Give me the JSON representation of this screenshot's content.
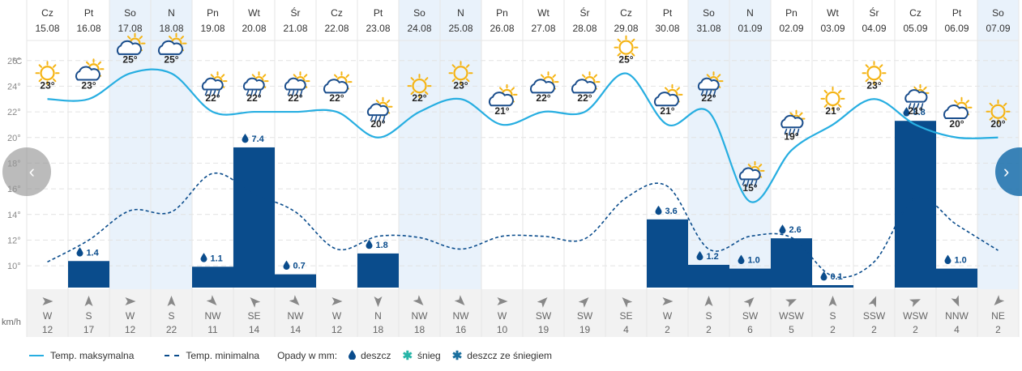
{
  "colors": {
    "max_line": "#27aee1",
    "min_line": "#0a4c8c",
    "bar": "#0a4c8c",
    "weekend_bg": "#e9f2fb",
    "sun": "#f5b414",
    "cloud": "#1b4e8c",
    "grid": "#e2e2e2",
    "wind_bg": "#f2f2f2"
  },
  "navigation": {
    "prev_glyph": "‹",
    "next_glyph": "›"
  },
  "legend": {
    "max_label": "Temp. maksymalna",
    "min_label": "Temp. minimalna",
    "precip_label": "Opady w mm:",
    "rain_label": "deszcz",
    "snow_label": "śnieg",
    "sleet_label": "deszcz ze śniegiem",
    "rain_glyph": "💧",
    "snow_glyph": "✱",
    "sleet_glyph": "✱"
  },
  "chart_data": {
    "type": "line",
    "days": [
      {
        "dow": "Cz",
        "date": "15.08",
        "max": 23,
        "min": 10.3,
        "precip": null,
        "wind_dir": "W",
        "wind_speed": 12,
        "wind_arrow_deg": 90,
        "icon": "sun-icon",
        "weekend": false
      },
      {
        "dow": "Pt",
        "date": "16.08",
        "max": 23,
        "min": 12,
        "precip": 1.4,
        "wind_dir": "S",
        "wind_speed": 17,
        "wind_arrow_deg": 0,
        "icon": "cloud-sun-icon",
        "weekend": false
      },
      {
        "dow": "So",
        "date": "17.08",
        "max": 25,
        "min": 14.3,
        "precip": null,
        "wind_dir": "W",
        "wind_speed": 12,
        "wind_arrow_deg": 90,
        "icon": "cloud-sun-icon",
        "weekend": true
      },
      {
        "dow": "N",
        "date": "18.08",
        "max": 25,
        "min": 14.2,
        "precip": null,
        "wind_dir": "S",
        "wind_speed": 22,
        "wind_arrow_deg": 0,
        "icon": "cloud-sun-icon",
        "weekend": true
      },
      {
        "dow": "Pn",
        "date": "19.08",
        "max": 22,
        "min": 17.2,
        "precip": 1.1,
        "wind_dir": "NW",
        "wind_speed": 11,
        "wind_arrow_deg": 135,
        "icon": "cloud-sun-rain-icon",
        "weekend": false
      },
      {
        "dow": "Wt",
        "date": "20.08",
        "max": 22,
        "min": 15.6,
        "precip": 7.4,
        "wind_dir": "SE",
        "wind_speed": 14,
        "wind_arrow_deg": -45,
        "icon": "cloud-sun-rain-icon",
        "weekend": false
      },
      {
        "dow": "Śr",
        "date": "21.08",
        "max": 22,
        "min": 14.2,
        "precip": 0.7,
        "wind_dir": "NW",
        "wind_speed": 14,
        "wind_arrow_deg": 135,
        "icon": "cloud-sun-rain-icon",
        "weekend": false
      },
      {
        "dow": "Cz",
        "date": "22.08",
        "max": 22,
        "min": 11.3,
        "precip": null,
        "wind_dir": "W",
        "wind_speed": 12,
        "wind_arrow_deg": 90,
        "icon": "cloud-sun-icon",
        "weekend": false
      },
      {
        "dow": "Pt",
        "date": "23.08",
        "max": 20,
        "min": 12.3,
        "precip": 1.8,
        "wind_dir": "N",
        "wind_speed": 18,
        "wind_arrow_deg": 180,
        "icon": "cloud-sun-rain-icon",
        "weekend": false
      },
      {
        "dow": "So",
        "date": "24.08",
        "max": 22,
        "min": 12.2,
        "precip": null,
        "wind_dir": "NW",
        "wind_speed": 18,
        "wind_arrow_deg": 135,
        "icon": "sun-icon",
        "weekend": true
      },
      {
        "dow": "N",
        "date": "25.08",
        "max": 23,
        "min": 11.3,
        "precip": null,
        "wind_dir": "NW",
        "wind_speed": 16,
        "wind_arrow_deg": 135,
        "icon": "sun-icon",
        "weekend": true
      },
      {
        "dow": "Pn",
        "date": "26.08",
        "max": 21,
        "min": 12.3,
        "precip": null,
        "wind_dir": "W",
        "wind_speed": 10,
        "wind_arrow_deg": 90,
        "icon": "cloud-sun-icon",
        "weekend": false
      },
      {
        "dow": "Wt",
        "date": "27.08",
        "max": 22,
        "min": 12.3,
        "precip": null,
        "wind_dir": "SW",
        "wind_speed": 19,
        "wind_arrow_deg": 45,
        "icon": "cloud-sun-icon",
        "weekend": false
      },
      {
        "dow": "Śr",
        "date": "28.08",
        "max": 22,
        "min": 12.1,
        "precip": null,
        "wind_dir": "SW",
        "wind_speed": 19,
        "wind_arrow_deg": 45,
        "icon": "cloud-sun-icon",
        "weekend": false
      },
      {
        "dow": "Cz",
        "date": "29.08",
        "max": 25,
        "min": 15.3,
        "precip": null,
        "wind_dir": "SE",
        "wind_speed": 4,
        "wind_arrow_deg": -45,
        "icon": "sun-icon",
        "weekend": false
      },
      {
        "dow": "Pt",
        "date": "30.08",
        "max": 21,
        "min": 16.2,
        "precip": 3.6,
        "wind_dir": "W",
        "wind_speed": 2,
        "wind_arrow_deg": 90,
        "icon": "cloud-sun-icon",
        "weekend": false
      },
      {
        "dow": "So",
        "date": "31.08",
        "max": 22,
        "min": 11.3,
        "precip": 1.2,
        "wind_dir": "S",
        "wind_speed": 2,
        "wind_arrow_deg": 0,
        "icon": "cloud-sun-rain-icon",
        "weekend": true
      },
      {
        "dow": "N",
        "date": "01.09",
        "max": 15,
        "min": 12.3,
        "precip": 1.0,
        "wind_dir": "SW",
        "wind_speed": 6,
        "wind_arrow_deg": 45,
        "icon": "cloud-sun-rain-icon",
        "weekend": true
      },
      {
        "dow": "Pn",
        "date": "02.09",
        "max": 19,
        "min": 12.2,
        "precip": 2.6,
        "wind_dir": "WSW",
        "wind_speed": 5,
        "wind_arrow_deg": 67,
        "icon": "cloud-rain-icon",
        "weekend": false
      },
      {
        "dow": "Wt",
        "date": "03.09",
        "max": 21,
        "min": 9.2,
        "precip": 0.1,
        "wind_dir": "S",
        "wind_speed": 2,
        "wind_arrow_deg": 0,
        "icon": "sun-icon",
        "weekend": false
      },
      {
        "dow": "Śr",
        "date": "04.09",
        "max": 23,
        "min": 10.3,
        "precip": null,
        "wind_dir": "SSW",
        "wind_speed": 2,
        "wind_arrow_deg": 22,
        "icon": "sun-icon",
        "weekend": false
      },
      {
        "dow": "Cz",
        "date": "05.09",
        "max": 21,
        "min": 15.3,
        "precip": 8.8,
        "wind_dir": "WSW",
        "wind_speed": 2,
        "wind_arrow_deg": 67,
        "icon": "cloud-rain-icon",
        "weekend": false
      },
      {
        "dow": "Pt",
        "date": "06.09",
        "max": 20,
        "min": 13.2,
        "precip": 1.0,
        "wind_dir": "NNW",
        "wind_speed": 4,
        "wind_arrow_deg": 157,
        "icon": "cloud-sun-icon",
        "weekend": false
      },
      {
        "dow": "So",
        "date": "07.09",
        "max": 20,
        "min": 11.2,
        "precip": null,
        "wind_dir": "NE",
        "wind_speed": 2,
        "wind_arrow_deg": -135,
        "icon": "sun-icon",
        "weekend": true
      }
    ],
    "y_axis": {
      "unit_label": "°C",
      "ticks": [
        10,
        12,
        14,
        16,
        18,
        20,
        22,
        24,
        26
      ],
      "tick_labels": [
        "10°",
        "12°",
        "14°",
        "16°",
        "18°",
        "20°",
        "22°",
        "24°",
        "26°"
      ],
      "range": [
        8.3,
        27.5
      ]
    },
    "wind_unit_label": "km/h",
    "degree_suffix": "°",
    "precip_range": [
      0,
      13
    ],
    "grid": true
  }
}
